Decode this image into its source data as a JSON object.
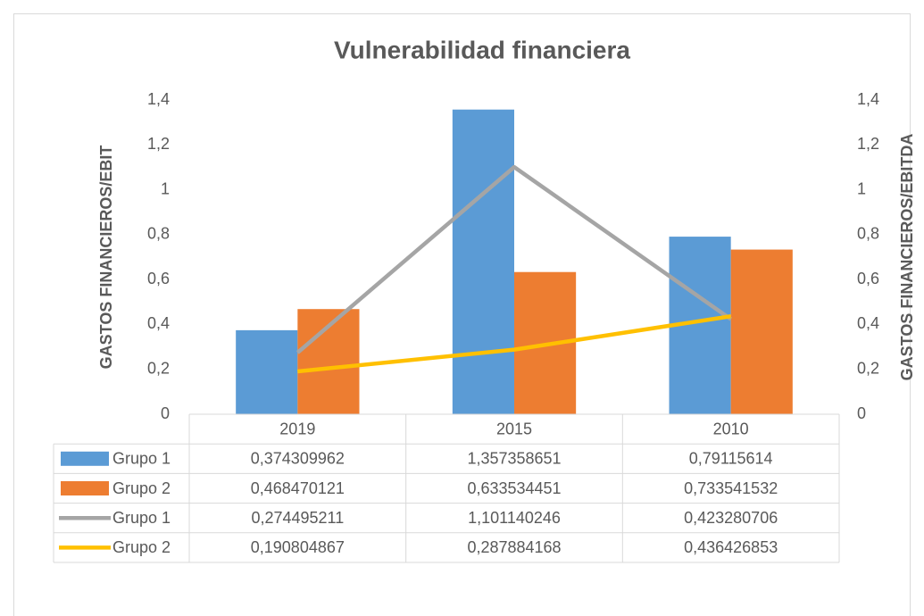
{
  "chart_data": {
    "type": "combo",
    "title": "Vulnerabilidad financiera",
    "ylabel": "GASTOS FINANCIEROS/EBIT",
    "y2label": "GASTOS FINANCIEROS/EBITDA",
    "categories": [
      "2019",
      "2015",
      "2010"
    ],
    "series": [
      {
        "name": "Grupo 1",
        "type": "bar",
        "color": "#5b9bd5",
        "axis": "y",
        "values": [
          0.374309962,
          1.357358651,
          0.79115614
        ],
        "value_labels": [
          "0,374309962",
          "1,357358651",
          "0,79115614"
        ]
      },
      {
        "name": "Grupo 2",
        "type": "bar",
        "color": "#ed7d31",
        "axis": "y",
        "values": [
          0.468470121,
          0.633534451,
          0.733541532
        ],
        "value_labels": [
          "0,468470121",
          "0,633534451",
          "0,733541532"
        ]
      },
      {
        "name": "Grupo 1",
        "type": "line",
        "color": "#a5a5a5",
        "axis": "y2",
        "values": [
          0.274495211,
          1.101140246,
          0.423280706
        ],
        "value_labels": [
          "0,274495211",
          "1,101140246",
          "0,423280706"
        ]
      },
      {
        "name": "Grupo 2",
        "type": "line",
        "color": "#ffc000",
        "axis": "y2",
        "values": [
          0.190804867,
          0.287884168,
          0.436426853
        ],
        "value_labels": [
          "0,190804867",
          "0,287884168",
          "0,436426853"
        ]
      }
    ],
    "ylim": [
      0,
      1.4
    ],
    "yticks": [
      0,
      {
        "value": 0.2,
        "label": "0,2"
      },
      {
        "value": 0.4,
        "label": "0,4"
      },
      {
        "value": 0.6,
        "label": "0,6"
      },
      {
        "value": 0.8,
        "label": "0,8"
      },
      1,
      {
        "value": 1.2,
        "label": "1,2"
      },
      {
        "value": 1.4,
        "label": "1,4"
      }
    ],
    "y2lim": [
      0,
      1.4
    ],
    "y2ticks": [
      0,
      {
        "value": 0.2,
        "label": "0,2"
      },
      {
        "value": 0.4,
        "label": "0,4"
      },
      {
        "value": 0.6,
        "label": "0,6"
      },
      {
        "value": 0.8,
        "label": "0,8"
      },
      1,
      {
        "value": 1.2,
        "label": "1,2"
      },
      {
        "value": 1.4,
        "label": "1,4"
      }
    ],
    "grid": false
  }
}
